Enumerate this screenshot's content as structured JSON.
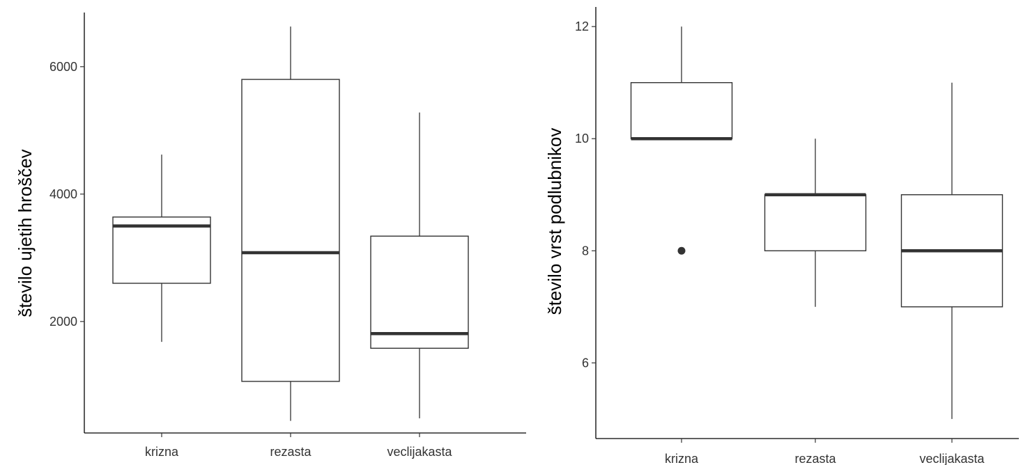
{
  "chart_data": [
    {
      "type": "box",
      "ylabel": "število ujetih hroščev",
      "xlabel": "",
      "categories": [
        "krizna",
        "rezasta",
        "veclijakasta"
      ],
      "yticks": [
        2000,
        4000,
        6000
      ],
      "ylim": [
        250,
        6850
      ],
      "boxes": [
        {
          "name": "krizna",
          "min": 1680,
          "q1": 2600,
          "median": 3500,
          "q3": 3640,
          "max": 4620,
          "outliers": []
        },
        {
          "name": "rezasta",
          "min": 440,
          "q1": 1060,
          "median": 3080,
          "q3": 5800,
          "max": 6630,
          "outliers": []
        },
        {
          "name": "veclijakasta",
          "min": 480,
          "q1": 1580,
          "median": 1810,
          "q3": 3340,
          "max": 5280,
          "outliers": []
        }
      ]
    },
    {
      "type": "box",
      "ylabel": "število vrst podlubnikov",
      "xlabel": "",
      "categories": [
        "krizna",
        "rezasta",
        "veclijakasta"
      ],
      "yticks": [
        6,
        8,
        10,
        12
      ],
      "ylim": [
        4.65,
        12.35
      ],
      "boxes": [
        {
          "name": "krizna",
          "min": 10,
          "q1": 10,
          "median": 10,
          "q3": 11,
          "max": 12,
          "outliers": [
            8
          ]
        },
        {
          "name": "rezasta",
          "min": 7,
          "q1": 8,
          "median": 9,
          "q3": 9,
          "max": 10,
          "outliers": []
        },
        {
          "name": "veclijakasta",
          "min": 5,
          "q1": 7,
          "median": 8,
          "q3": 9,
          "max": 11,
          "outliers": []
        }
      ]
    }
  ]
}
